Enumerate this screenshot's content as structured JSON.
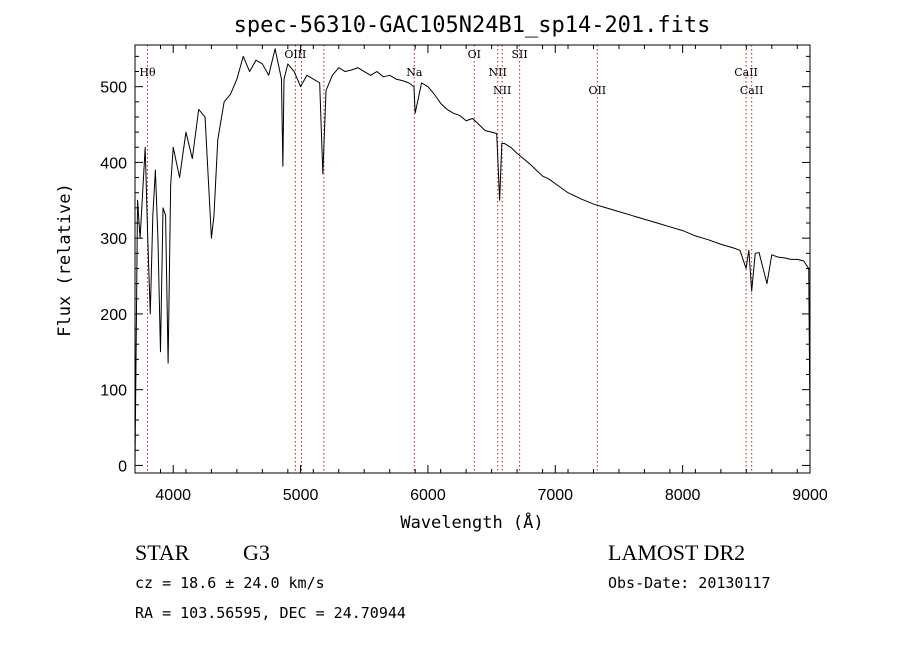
{
  "chart_data": {
    "type": "line",
    "title": "spec-56310-GAC105N24B1_sp14-201.fits",
    "xlabel": "Wavelength (Å)",
    "ylabel": "Flux (relative)",
    "xlim": [
      3700,
      9000
    ],
    "ylim": [
      -10,
      555
    ],
    "xticks": [
      4000,
      5000,
      6000,
      7000,
      8000,
      9000
    ],
    "yticks": [
      0,
      100,
      200,
      300,
      400,
      500
    ],
    "grid": false,
    "series": [
      {
        "name": "flux",
        "x": [
          3700,
          3720,
          3740,
          3760,
          3780,
          3800,
          3820,
          3840,
          3860,
          3880,
          3900,
          3920,
          3940,
          3960,
          3980,
          4000,
          4050,
          4100,
          4150,
          4200,
          4250,
          4300,
          4320,
          4350,
          4400,
          4450,
          4500,
          4550,
          4600,
          4650,
          4700,
          4750,
          4800,
          4850,
          4861,
          4870,
          4900,
          4950,
          5000,
          5050,
          5100,
          5150,
          5175,
          5200,
          5250,
          5300,
          5350,
          5400,
          5450,
          5500,
          5550,
          5600,
          5650,
          5700,
          5750,
          5800,
          5850,
          5890,
          5900,
          5950,
          6000,
          6050,
          6100,
          6150,
          6200,
          6250,
          6300,
          6350,
          6400,
          6450,
          6500,
          6540,
          6563,
          6580,
          6600,
          6650,
          6700,
          6750,
          6800,
          6850,
          6900,
          6950,
          7000,
          7100,
          7200,
          7300,
          7400,
          7500,
          7600,
          7700,
          7800,
          7900,
          8000,
          8100,
          8200,
          8300,
          8400,
          8450,
          8498,
          8520,
          8542,
          8570,
          8600,
          8662,
          8700,
          8750,
          8800,
          8850,
          8900,
          8950,
          8990,
          9000
        ],
        "values": [
          0,
          350,
          300,
          360,
          420,
          300,
          200,
          330,
          390,
          300,
          150,
          340,
          330,
          135,
          370,
          420,
          380,
          440,
          405,
          470,
          460,
          300,
          330,
          430,
          480,
          490,
          510,
          540,
          520,
          535,
          530,
          515,
          550,
          510,
          395,
          510,
          530,
          520,
          500,
          515,
          510,
          505,
          385,
          495,
          515,
          525,
          520,
          522,
          525,
          520,
          515,
          520,
          513,
          515,
          510,
          508,
          505,
          500,
          465,
          505,
          500,
          490,
          478,
          470,
          465,
          462,
          455,
          458,
          450,
          442,
          440,
          438,
          350,
          425,
          425,
          420,
          412,
          405,
          398,
          390,
          382,
          378,
          372,
          360,
          352,
          345,
          340,
          335,
          330,
          325,
          320,
          315,
          310,
          303,
          298,
          292,
          287,
          284,
          260,
          284,
          230,
          280,
          281,
          240,
          278,
          275,
          274,
          272,
          272,
          270,
          260,
          50
        ]
      }
    ],
    "annotations": [
      {
        "label": "Hθ",
        "x": 3798,
        "row": 0
      },
      {
        "label": "OIII",
        "x": 4959,
        "row": 1
      },
      {
        "label": "",
        "x": 5007,
        "row": 1
      },
      {
        "label": "",
        "x": 5183,
        "row": 1
      },
      {
        "label": "Na",
        "x": 5893,
        "row": 0
      },
      {
        "label": "OI",
        "x": 6364,
        "row": 1
      },
      {
        "label": "NII",
        "x": 6548,
        "row": 0
      },
      {
        "label": "NII",
        "x": 6583,
        "row": 2
      },
      {
        "label": "OII",
        "x": 7330,
        "row": 2
      },
      {
        "label": "SII",
        "x": 6720,
        "row": 1
      },
      {
        "label": "CaII",
        "x": 8498,
        "row": 0
      },
      {
        "label": "CaII",
        "x": 8542,
        "row": 2
      }
    ]
  },
  "info": {
    "object_type": "STAR",
    "subclass": "G3",
    "survey": "LAMOST DR2",
    "redshift": "cz = 18.6 ± 24.0 km/s",
    "obs_date": "Obs-Date: 20130117",
    "coords": "RA = 103.56595, DEC =  24.70944"
  },
  "colors": {
    "line": "#000000",
    "marker": "#b22222",
    "axes": "#000000",
    "background": "#ffffff"
  }
}
